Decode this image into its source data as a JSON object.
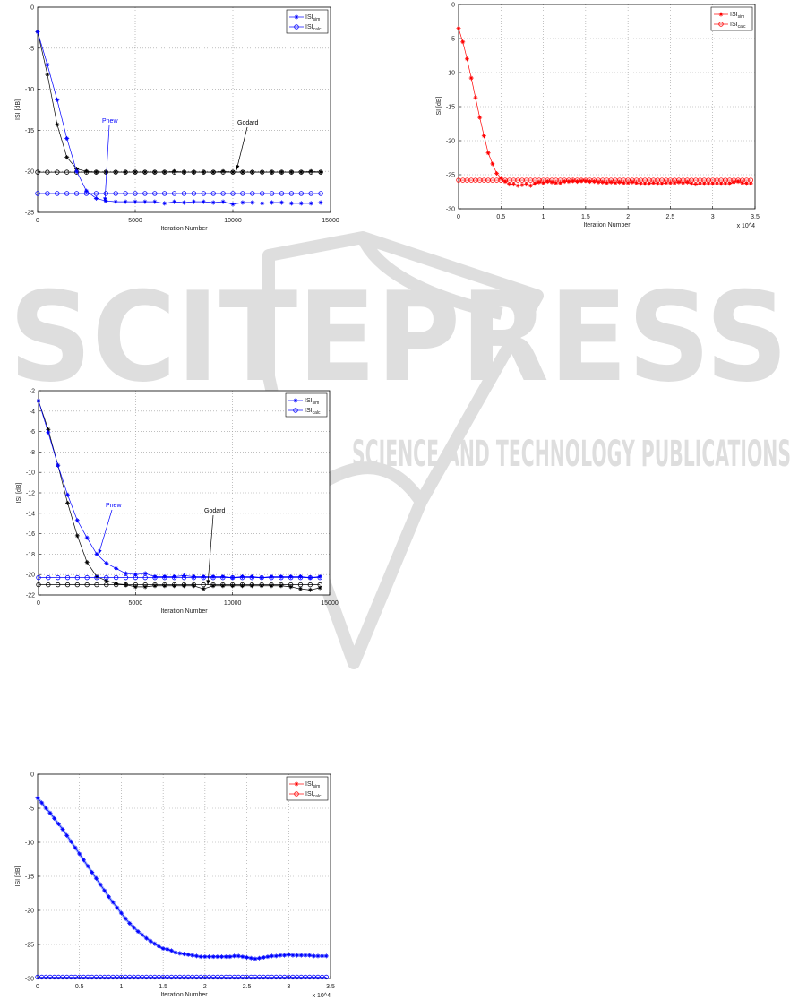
{
  "watermark": {
    "brand": "SCITEPRESS",
    "tagline": "SCIENCE AND TECHNOLOGY PUBLICATIONS",
    "color": "#d9d9d9"
  },
  "chart_data": [
    {
      "type": "line",
      "xlabel": "Iteration Number",
      "ylabel": "ISI [dB]",
      "xlim": [
        0,
        15000
      ],
      "ylim": [
        -25,
        0
      ],
      "xticks": [
        0,
        5000,
        10000,
        15000
      ],
      "yticks": [
        0,
        -5,
        -10,
        -15,
        -20,
        -25
      ],
      "x_multiplier": "",
      "grid": true,
      "legend": {
        "placement": "top-right",
        "color": "#0000ff",
        "entries": [
          {
            "base": "ISI",
            "sub": "sim",
            "marker": "plus"
          },
          {
            "base": "ISI",
            "sub": "calc",
            "marker": "circle"
          }
        ]
      },
      "x": [
        0,
        500,
        1000,
        1500,
        2000,
        2500,
        3000,
        3500,
        4000,
        4500,
        5000,
        5500,
        6000,
        6500,
        7000,
        7500,
        8000,
        8500,
        9000,
        9500,
        10000,
        10500,
        11000,
        11500,
        12000,
        12500,
        13000,
        13500,
        14000,
        14500
      ],
      "series": [
        {
          "color": "#000000",
          "marker": "plus",
          "values": [
            -3,
            -8.2,
            -14.3,
            -18.3,
            -19.7,
            -20.0,
            -20.1,
            -20.1,
            -20.1,
            -20.1,
            -20.1,
            -20.1,
            -20.1,
            -20.1,
            -20.0,
            -20.1,
            -20.1,
            -20.1,
            -20.1,
            -20.0,
            -20.1,
            -20.1,
            -20.1,
            -20.1,
            -20.1,
            -20.1,
            -20.1,
            -20.1,
            -20.0,
            -20.1
          ]
        },
        {
          "color": "#000000",
          "marker": "circle",
          "constant": -20.1
        },
        {
          "color": "#0000ff",
          "marker": "plus",
          "values": [
            -3,
            -7,
            -11.3,
            -16,
            -20,
            -22.4,
            -23.3,
            -23.6,
            -23.7,
            -23.7,
            -23.7,
            -23.7,
            -23.7,
            -23.9,
            -23.7,
            -23.8,
            -23.7,
            -23.7,
            -23.8,
            -23.7,
            -24.0,
            -23.8,
            -23.8,
            -23.9,
            -23.8,
            -23.8,
            -23.9,
            -23.9,
            -23.9,
            -23.8
          ]
        },
        {
          "color": "#0000ff",
          "marker": "circle",
          "constant": -22.7
        }
      ],
      "annotations": [
        {
          "text": "Pnew",
          "color": "#0000ff"
        },
        {
          "text": "Godard",
          "color": "#000000"
        }
      ]
    },
    {
      "type": "line",
      "xlabel": "Iteration Number",
      "ylabel": "ISI [dB]",
      "xlim": [
        0,
        3.5
      ],
      "ylim": [
        -30,
        0
      ],
      "xticks": [
        0,
        0.5,
        1,
        1.5,
        2,
        2.5,
        3,
        3.5
      ],
      "yticks": [
        0,
        -5,
        -10,
        -15,
        -20,
        -25,
        -30
      ],
      "x_multiplier": "x 10^4",
      "grid": true,
      "legend": {
        "placement": "top-right",
        "color": "#ff0000",
        "entries": [
          {
            "base": "ISI",
            "sub": "sim",
            "marker": "plus"
          },
          {
            "base": "ISI",
            "sub": "calc",
            "marker": "circle"
          }
        ]
      },
      "x": [
        0,
        0.05,
        0.1,
        0.15,
        0.2,
        0.25,
        0.3,
        0.35,
        0.4,
        0.45,
        0.5,
        0.55,
        0.6,
        0.65,
        0.7,
        0.75,
        0.8,
        0.85,
        0.9,
        0.95,
        1,
        1.05,
        1.1,
        1.15,
        1.2,
        1.25,
        1.3,
        1.35,
        1.4,
        1.45,
        1.5,
        1.55,
        1.6,
        1.65,
        1.7,
        1.75,
        1.8,
        1.85,
        1.9,
        1.95,
        2,
        2.05,
        2.1,
        2.15,
        2.2,
        2.25,
        2.3,
        2.35,
        2.4,
        2.45,
        2.5,
        2.55,
        2.6,
        2.65,
        2.7,
        2.75,
        2.8,
        2.85,
        2.9,
        2.95,
        3,
        3.05,
        3.1,
        3.15,
        3.2,
        3.25,
        3.3,
        3.35,
        3.4,
        3.45
      ],
      "series": [
        {
          "color": "#ff0000",
          "marker": "circle",
          "constant": -25.8
        },
        {
          "color": "#ff0000",
          "marker": "plus",
          "values": [
            -3.5,
            -5.5,
            -8.0,
            -10.8,
            -13.7,
            -16.6,
            -19.3,
            -21.8,
            -23.4,
            -24.8,
            -25.5,
            -26.0,
            -26.4,
            -26.4,
            -26.6,
            -26.5,
            -26.4,
            -26.6,
            -26.3,
            -26.1,
            -26.2,
            -26.0,
            -26.1,
            -26.2,
            -26.2,
            -26.0,
            -26.0,
            -25.9,
            -26.0,
            -25.9,
            -25.9,
            -26.0,
            -26.0,
            -26.1,
            -26.1,
            -26.2,
            -26.1,
            -26.2,
            -26.1,
            -26.2,
            -26.2,
            -26.1,
            -26.2,
            -26.3,
            -26.3,
            -26.3,
            -26.2,
            -26.3,
            -26.3,
            -26.2,
            -26.2,
            -26.2,
            -26.1,
            -26.2,
            -26.1,
            -26.3,
            -26.4,
            -26.3,
            -26.3,
            -26.3,
            -26.3,
            -26.3,
            -26.3,
            -26.3,
            -26.3,
            -26.1,
            -26.0,
            -26.2,
            -26.3,
            -26.3
          ]
        }
      ],
      "annotations": []
    },
    {
      "type": "line",
      "xlabel": "Iteration Number",
      "ylabel": "ISI [dB]",
      "xlim": [
        0,
        15000
      ],
      "ylim": [
        -22,
        -2
      ],
      "xticks": [
        0,
        5000,
        10000,
        15000
      ],
      "yticks": [
        -2,
        -4,
        -6,
        -8,
        -10,
        -12,
        -14,
        -16,
        -18,
        -20,
        -22
      ],
      "x_multiplier": "",
      "grid": true,
      "legend": {
        "placement": "top-right",
        "color": "#0000ff",
        "entries": [
          {
            "base": "ISI",
            "sub": "sim",
            "marker": "plus"
          },
          {
            "base": "ISI",
            "sub": "calc",
            "marker": "circle"
          }
        ]
      },
      "x": [
        0,
        500,
        1000,
        1500,
        2000,
        2500,
        3000,
        3500,
        4000,
        4500,
        5000,
        5500,
        6000,
        6500,
        7000,
        7500,
        8000,
        8500,
        9000,
        9500,
        10000,
        10500,
        11000,
        11500,
        12000,
        12500,
        13000,
        13500,
        14000,
        14500
      ],
      "series": [
        {
          "color": "#000000",
          "marker": "plus",
          "values": [
            -3,
            -5.8,
            -9.3,
            -13.0,
            -16.2,
            -18.8,
            -20.2,
            -20.6,
            -20.9,
            -21.0,
            -21.2,
            -21.2,
            -21.1,
            -21.1,
            -21.1,
            -21.1,
            -21.1,
            -21.4,
            -21.1,
            -21.1,
            -21.1,
            -21.1,
            -21.1,
            -21.1,
            -21.1,
            -21.1,
            -21.2,
            -21.4,
            -21.5,
            -21.3
          ]
        },
        {
          "color": "#000000",
          "marker": "circle",
          "constant": -21.0
        },
        {
          "color": "#0000ff",
          "marker": "plus",
          "values": [
            -3,
            -6.1,
            -9.3,
            -12.2,
            -14.7,
            -16.4,
            -18.0,
            -18.9,
            -19.4,
            -19.9,
            -20.0,
            -19.9,
            -20.2,
            -20.2,
            -20.2,
            -20.1,
            -20.2,
            -20.2,
            -20.2,
            -20.2,
            -20.3,
            -20.2,
            -20.2,
            -20.3,
            -20.2,
            -20.2,
            -20.2,
            -20.2,
            -20.3,
            -20.2
          ]
        },
        {
          "color": "#0000ff",
          "marker": "circle",
          "constant": -20.3
        }
      ],
      "annotations": [
        {
          "text": "Pnew",
          "color": "#0000ff"
        },
        {
          "text": "Godard",
          "color": "#000000"
        }
      ]
    },
    {
      "type": "line",
      "xlabel": "Iteration Number",
      "ylabel": "ISI [dB]",
      "xlim": [
        0,
        3.5
      ],
      "ylim": [
        -30,
        0
      ],
      "xticks": [
        0,
        0.5,
        1,
        1.5,
        2,
        2.5,
        3,
        3.5
      ],
      "yticks": [
        0,
        -5,
        -10,
        -15,
        -20,
        -25,
        -30
      ],
      "x_multiplier": "x 10^4",
      "grid": true,
      "legend": {
        "placement": "top-right",
        "color": "#ff0000",
        "entries": [
          {
            "base": "ISI",
            "sub": "sim",
            "marker": "plus"
          },
          {
            "base": "ISI",
            "sub": "calc",
            "marker": "circle"
          }
        ]
      },
      "x": [
        0,
        0.05,
        0.1,
        0.15,
        0.2,
        0.25,
        0.3,
        0.35,
        0.4,
        0.45,
        0.5,
        0.55,
        0.6,
        0.65,
        0.7,
        0.75,
        0.8,
        0.85,
        0.9,
        0.95,
        1,
        1.05,
        1.1,
        1.15,
        1.2,
        1.25,
        1.3,
        1.35,
        1.4,
        1.45,
        1.5,
        1.55,
        1.6,
        1.65,
        1.7,
        1.75,
        1.8,
        1.85,
        1.9,
        1.95,
        2,
        2.05,
        2.1,
        2.15,
        2.2,
        2.25,
        2.3,
        2.35,
        2.4,
        2.45,
        2.5,
        2.55,
        2.6,
        2.65,
        2.7,
        2.75,
        2.8,
        2.85,
        2.9,
        2.95,
        3,
        3.05,
        3.1,
        3.15,
        3.2,
        3.25,
        3.3,
        3.35,
        3.4,
        3.45
      ],
      "series": [
        {
          "color": "#0000ff",
          "marker": "plus",
          "values": [
            -3.5,
            -4.2,
            -5.0,
            -5.7,
            -6.5,
            -7.3,
            -8.1,
            -9.0,
            -9.9,
            -10.8,
            -11.7,
            -12.6,
            -13.5,
            -14.4,
            -15.3,
            -16.2,
            -17.1,
            -18.0,
            -18.8,
            -19.6,
            -20.4,
            -21.2,
            -21.9,
            -22.5,
            -23.1,
            -23.6,
            -24.1,
            -24.5,
            -24.9,
            -25.3,
            -25.6,
            -25.7,
            -25.9,
            -26.2,
            -26.3,
            -26.4,
            -26.5,
            -26.6,
            -26.7,
            -26.8,
            -26.8,
            -26.8,
            -26.8,
            -26.8,
            -26.8,
            -26.8,
            -26.8,
            -26.7,
            -26.7,
            -26.8,
            -26.9,
            -27.0,
            -27.1,
            -27.0,
            -26.9,
            -26.8,
            -26.7,
            -26.7,
            -26.6,
            -26.6,
            -26.5,
            -26.6,
            -26.6,
            -26.6,
            -26.6,
            -26.6,
            -26.7,
            -26.7,
            -26.7,
            -26.7
          ]
        },
        {
          "color": "#0000ff",
          "marker": "circle",
          "constant": -29.8
        }
      ],
      "annotations": []
    }
  ]
}
